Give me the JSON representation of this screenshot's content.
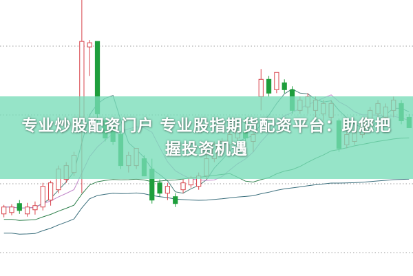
{
  "banner": {
    "title": "专业炒股配资门户 专业股指期货配资平台：助您把握投资机遇"
  },
  "colors": {
    "up": "#d8424a",
    "down": "#1e9e3c",
    "banner": "#8fe2c6",
    "grid": "#999999",
    "ma": [
      "#4a7f7a",
      "#c084c8",
      "#2c7f4a",
      "#3a6e7c"
    ]
  },
  "chart_data": {
    "type": "candlestick",
    "grid": true,
    "grid_style": "dotted horizontal",
    "ylim": [
      0,
      40
    ],
    "moving_averages": [
      5,
      10,
      20,
      60
    ],
    "candles": [
      {
        "o": 9.0,
        "h": 10.3,
        "l": 8.5,
        "c": 10.0
      },
      {
        "o": 9.2,
        "h": 10.4,
        "l": 8.8,
        "c": 10.0
      },
      {
        "o": 10.5,
        "h": 11.0,
        "l": 9.0,
        "c": 9.5
      },
      {
        "o": 9.0,
        "h": 10.6,
        "l": 8.6,
        "c": 10.0
      },
      {
        "o": 9.6,
        "h": 10.8,
        "l": 8.9,
        "c": 10.2
      },
      {
        "o": 10.0,
        "h": 13.5,
        "l": 9.5,
        "c": 13.0
      },
      {
        "o": 11.0,
        "h": 13.8,
        "l": 10.2,
        "c": 13.5
      },
      {
        "o": 12.5,
        "h": 16.0,
        "l": 12.0,
        "c": 15.5
      },
      {
        "o": 14.0,
        "h": 16.5,
        "l": 13.5,
        "c": 16.0
      },
      {
        "o": 15.0,
        "h": 18.0,
        "l": 14.5,
        "c": 17.5
      },
      {
        "o": 21.5,
        "h": 40.0,
        "l": 12.0,
        "c": 34.0
      },
      {
        "o": 33.2,
        "h": 34.2,
        "l": 29.0,
        "c": 33.8
      },
      {
        "o": 34.0,
        "h": 34.0,
        "l": 22.0,
        "c": 23.5
      },
      {
        "o": 22.5,
        "h": 23.0,
        "l": 19.5,
        "c": 20.0
      },
      {
        "o": 21.5,
        "h": 22.0,
        "l": 19.0,
        "c": 19.5
      },
      {
        "o": 20.5,
        "h": 21.0,
        "l": 15.5,
        "c": 16.0
      },
      {
        "o": 16.0,
        "h": 18.0,
        "l": 15.0,
        "c": 17.5
      },
      {
        "o": 16.0,
        "h": 18.5,
        "l": 15.5,
        "c": 18.5
      },
      {
        "o": 17.0,
        "h": 17.5,
        "l": 14.5,
        "c": 14.5
      },
      {
        "o": 15.5,
        "h": 17.0,
        "l": 10.5,
        "c": 11.0
      },
      {
        "o": 13.5,
        "h": 14.0,
        "l": 11.5,
        "c": 12.0
      },
      {
        "o": 12.0,
        "h": 13.5,
        "l": 11.0,
        "c": 13.0
      },
      {
        "o": 11.5,
        "h": 12.0,
        "l": 10.0,
        "c": 10.5
      },
      {
        "o": 12.5,
        "h": 14.0,
        "l": 12.0,
        "c": 13.5
      },
      {
        "o": 13.2,
        "h": 14.5,
        "l": 12.8,
        "c": 14.2
      },
      {
        "o": 13.0,
        "h": 15.0,
        "l": 12.5,
        "c": 14.5
      },
      {
        "o": 14.5,
        "h": 18.0,
        "l": 14.0,
        "c": 17.0
      },
      {
        "o": 17.0,
        "h": 19.5,
        "l": 16.5,
        "c": 19.0
      },
      {
        "o": 18.5,
        "h": 20.0,
        "l": 17.5,
        "c": 19.5
      },
      {
        "o": 19.0,
        "h": 21.0,
        "l": 18.0,
        "c": 20.5
      },
      {
        "o": 20.0,
        "h": 22.0,
        "l": 19.0,
        "c": 21.0
      },
      {
        "o": 21.0,
        "h": 23.0,
        "l": 19.5,
        "c": 20.0
      },
      {
        "o": 19.5,
        "h": 21.0,
        "l": 18.0,
        "c": 20.5
      },
      {
        "o": 26.0,
        "h": 30.0,
        "l": 24.0,
        "c": 28.5
      },
      {
        "o": 28.5,
        "h": 29.0,
        "l": 26.0,
        "c": 26.5
      },
      {
        "o": 27.0,
        "h": 29.5,
        "l": 26.5,
        "c": 29.5
      },
      {
        "o": 28.0,
        "h": 28.5,
        "l": 26.5,
        "c": 27.0
      },
      {
        "o": 27.0,
        "h": 27.5,
        "l": 23.5,
        "c": 24.0
      },
      {
        "o": 24.0,
        "h": 26.0,
        "l": 23.5,
        "c": 25.5
      },
      {
        "o": 24.5,
        "h": 26.5,
        "l": 23.5,
        "c": 26.0
      },
      {
        "o": 24.0,
        "h": 26.0,
        "l": 23.0,
        "c": 25.5
      },
      {
        "o": 23.5,
        "h": 25.5,
        "l": 22.5,
        "c": 25.0
      },
      {
        "o": 23.0,
        "h": 25.5,
        "l": 22.0,
        "c": 25.0
      },
      {
        "o": 22.5,
        "h": 22.8,
        "l": 18.0,
        "c": 18.5
      },
      {
        "o": 19.0,
        "h": 21.0,
        "l": 18.5,
        "c": 20.5
      },
      {
        "o": 19.5,
        "h": 21.5,
        "l": 19.0,
        "c": 21.0
      },
      {
        "o": 20.5,
        "h": 23.0,
        "l": 20.0,
        "c": 22.5
      },
      {
        "o": 21.5,
        "h": 24.5,
        "l": 21.0,
        "c": 24.0
      },
      {
        "o": 23.5,
        "h": 25.5,
        "l": 22.5,
        "c": 25.0
      },
      {
        "o": 23.0,
        "h": 25.0,
        "l": 22.0,
        "c": 24.5
      },
      {
        "o": 24.0,
        "h": 26.0,
        "l": 23.0,
        "c": 25.5
      },
      {
        "o": 25.0,
        "h": 25.5,
        "l": 22.0,
        "c": 22.5
      },
      {
        "o": 23.0,
        "h": 23.5,
        "l": 21.5,
        "c": 21.5
      }
    ]
  }
}
